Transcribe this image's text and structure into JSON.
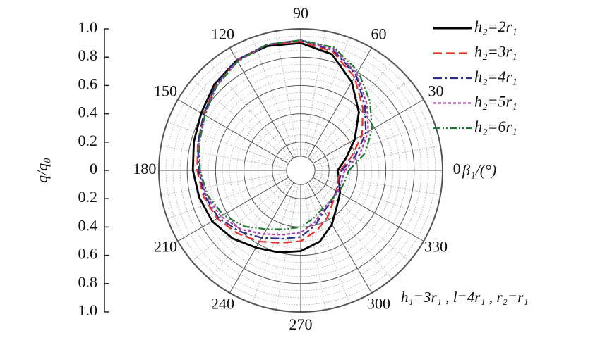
{
  "chart_data": {
    "type": "polar",
    "y_label": "q/q₀",
    "x_label": "β₁/(°)",
    "annotation": "h₁=3r₁ , l=4r₁ , r₂=r₁",
    "theta": [
      0,
      15,
      30,
      45,
      60,
      75,
      90,
      105,
      120,
      135,
      150,
      165,
      180,
      195,
      210,
      225,
      240,
      255,
      270,
      285,
      300,
      315,
      330,
      345
    ],
    "thetaticks": [
      0,
      30,
      60,
      90,
      120,
      150,
      180,
      210,
      240,
      270,
      300,
      330
    ],
    "ylim": [
      -1,
      1
    ],
    "yticks": [
      {
        "value": 1,
        "label": "1.0"
      },
      0.8,
      0.6,
      0.4,
      0.2,
      0,
      {
        "value": -0.2,
        "label": "0.2"
      },
      {
        "value": -0.4,
        "label": "0.4"
      },
      {
        "value": -0.6,
        "label": "0.6"
      },
      {
        "value": -0.8,
        "label": "0.8"
      },
      {
        "value": -1,
        "label": "1.0"
      }
    ],
    "grid": true,
    "legend": "top-right",
    "series": [
      {
        "name": "h₂=2r₁",
        "color": "#000000",
        "dash": "solid",
        "values": [
          0.26,
          0.33,
          0.44,
          0.58,
          0.72,
          0.85,
          0.9,
          0.91,
          0.9,
          0.86,
          0.81,
          0.78,
          0.76,
          0.74,
          0.72,
          0.68,
          0.63,
          0.6,
          0.57,
          0.52,
          0.44,
          0.36,
          0.32,
          0.28
        ]
      },
      {
        "name": "h₂=3r₁",
        "color": "#e8322c",
        "dash": "dashed",
        "values": [
          0.28,
          0.37,
          0.5,
          0.62,
          0.76,
          0.87,
          0.91,
          0.92,
          0.9,
          0.85,
          0.79,
          0.75,
          0.73,
          0.71,
          0.68,
          0.63,
          0.58,
          0.53,
          0.5,
          0.44,
          0.38,
          0.32,
          0.29,
          0.27
        ]
      },
      {
        "name": "h₂=4r₁",
        "color": "#2e2e8c",
        "dash": "dashdot",
        "values": [
          0.29,
          0.4,
          0.53,
          0.64,
          0.78,
          0.88,
          0.92,
          0.92,
          0.9,
          0.85,
          0.79,
          0.75,
          0.72,
          0.7,
          0.67,
          0.61,
          0.55,
          0.5,
          0.47,
          0.4,
          0.33,
          0.31,
          0.29,
          0.28
        ]
      },
      {
        "name": "h₂=5r₁",
        "color": "#b03fb0",
        "dash": "dotted",
        "values": [
          0.31,
          0.43,
          0.55,
          0.66,
          0.79,
          0.89,
          0.92,
          0.92,
          0.89,
          0.84,
          0.78,
          0.74,
          0.71,
          0.69,
          0.65,
          0.59,
          0.52,
          0.47,
          0.44,
          0.38,
          0.32,
          0.3,
          0.3,
          0.3
        ]
      },
      {
        "name": "h₂=6r₁",
        "color": "#1e7a32",
        "dash": "dashdotdot",
        "values": [
          0.34,
          0.47,
          0.58,
          0.69,
          0.81,
          0.9,
          0.92,
          0.92,
          0.89,
          0.84,
          0.78,
          0.74,
          0.71,
          0.68,
          0.63,
          0.56,
          0.48,
          0.43,
          0.4,
          0.35,
          0.31,
          0.3,
          0.31,
          0.32
        ]
      }
    ]
  }
}
